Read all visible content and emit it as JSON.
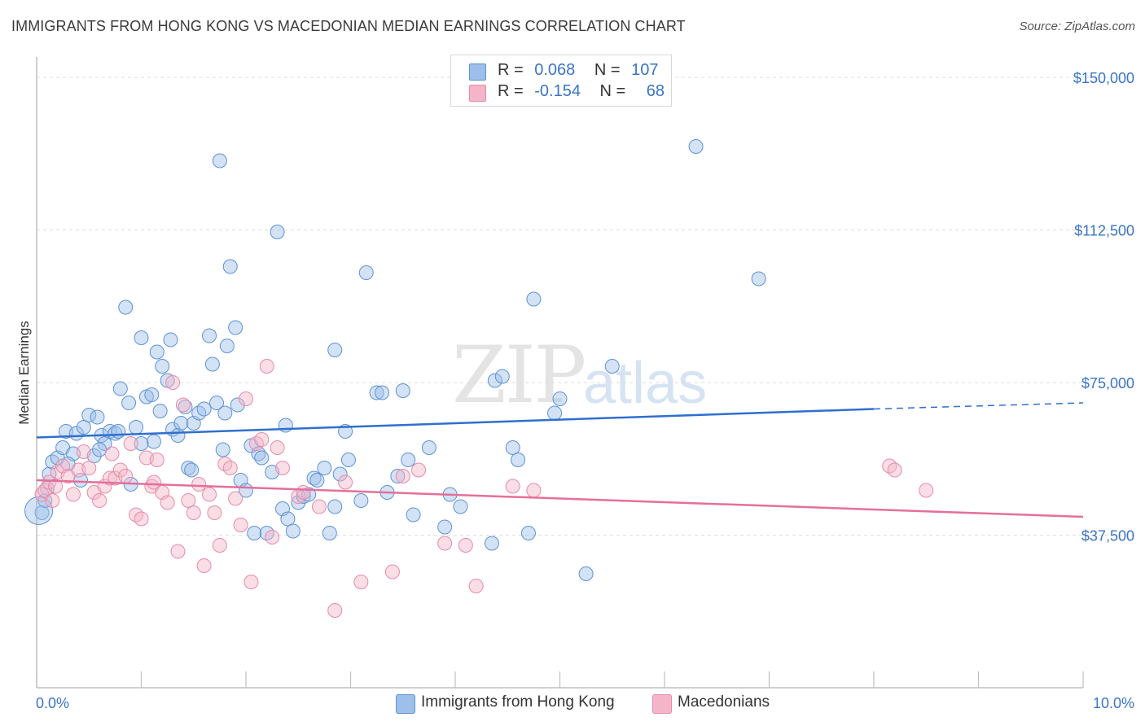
{
  "title": "IMMIGRANTS FROM HONG KONG VS MACEDONIAN MEDIAN EARNINGS CORRELATION CHART",
  "source": "Source: ZipAtlas.com",
  "watermark": {
    "zip": "ZIP",
    "atlas": "atlas"
  },
  "legend": {
    "rows": [
      {
        "r_label": "R =",
        "r_value": "0.068",
        "n_label": "N =",
        "n_value": "107",
        "color": "#9dbfe9"
      },
      {
        "r_label": "R =",
        "r_value": "-0.154",
        "n_label": "N =",
        "n_value": "68",
        "color": "#f5b5c8"
      }
    ]
  },
  "bottom_legend": {
    "series1": "Immigrants from Hong Kong",
    "series2": "Macedonians"
  },
  "chart_data": {
    "type": "scatter",
    "title": "IMMIGRANTS FROM HONG KONG VS MACEDONIAN MEDIAN EARNINGS CORRELATION CHART",
    "xlabel": "",
    "ylabel": "Median Earnings",
    "xlim": [
      0,
      10
    ],
    "ylim": [
      0,
      155000
    ],
    "x_tick_labels": [
      "0.0%",
      "10.0%"
    ],
    "y_ticks": [
      37500,
      75000,
      112500,
      150000
    ],
    "y_tick_labels": [
      "$37,500",
      "$75,000",
      "$112,500",
      "$150,000"
    ],
    "grid": true,
    "series": [
      {
        "name": "Immigrants from Hong Kong",
        "color": "#9dbfe9",
        "stroke": "#5d93d6",
        "trend": {
          "x": [
            0,
            8
          ],
          "y": [
            61500,
            68500
          ],
          "dashed_to": [
            10,
            70000
          ],
          "color": "#2f6fcf"
        },
        "points": [
          [
            0.05,
            43000
          ],
          [
            0.08,
            46000
          ],
          [
            0.1,
            49000
          ],
          [
            0.12,
            52500
          ],
          [
            0.15,
            55500
          ],
          [
            0.2,
            56500
          ],
          [
            0.25,
            59000
          ],
          [
            0.28,
            63000
          ],
          [
            0.35,
            57500
          ],
          [
            0.38,
            62500
          ],
          [
            0.42,
            51000
          ],
          [
            0.45,
            64000
          ],
          [
            0.5,
            67000
          ],
          [
            0.55,
            57000
          ],
          [
            0.58,
            66500
          ],
          [
            0.62,
            62000
          ],
          [
            0.65,
            60000
          ],
          [
            0.7,
            63000
          ],
          [
            0.75,
            62500
          ],
          [
            0.78,
            63000
          ],
          [
            0.8,
            73500
          ],
          [
            0.85,
            93500
          ],
          [
            0.88,
            70000
          ],
          [
            0.9,
            50000
          ],
          [
            0.95,
            64000
          ],
          [
            1.0,
            86000
          ],
          [
            1.05,
            71500
          ],
          [
            1.1,
            72000
          ],
          [
            1.12,
            60500
          ],
          [
            1.15,
            82500
          ],
          [
            1.18,
            68000
          ],
          [
            1.2,
            79000
          ],
          [
            1.25,
            75500
          ],
          [
            1.28,
            85500
          ],
          [
            1.3,
            63500
          ],
          [
            1.35,
            62000
          ],
          [
            1.38,
            65000
          ],
          [
            1.42,
            69000
          ],
          [
            1.45,
            54000
          ],
          [
            1.48,
            53500
          ],
          [
            1.5,
            65000
          ],
          [
            1.55,
            67500
          ],
          [
            1.6,
            68500
          ],
          [
            1.65,
            86500
          ],
          [
            1.68,
            79500
          ],
          [
            1.72,
            70000
          ],
          [
            1.75,
            129500
          ],
          [
            1.78,
            58500
          ],
          [
            1.8,
            67500
          ],
          [
            1.82,
            84000
          ],
          [
            1.85,
            103500
          ],
          [
            1.9,
            88500
          ],
          [
            1.92,
            69500
          ],
          [
            1.95,
            51000
          ],
          [
            2.0,
            48500
          ],
          [
            2.05,
            59500
          ],
          [
            2.08,
            38000
          ],
          [
            2.12,
            57500
          ],
          [
            2.15,
            56500
          ],
          [
            2.2,
            38000
          ],
          [
            2.25,
            53000
          ],
          [
            2.3,
            112000
          ],
          [
            2.35,
            44000
          ],
          [
            2.38,
            64500
          ],
          [
            2.4,
            41500
          ],
          [
            2.45,
            38500
          ],
          [
            2.5,
            45500
          ],
          [
            2.55,
            47000
          ],
          [
            2.6,
            47500
          ],
          [
            2.65,
            51500
          ],
          [
            2.68,
            51000
          ],
          [
            2.75,
            54000
          ],
          [
            2.8,
            38000
          ],
          [
            2.85,
            44500
          ],
          [
            2.9,
            52500
          ],
          [
            2.95,
            63000
          ],
          [
            2.98,
            56000
          ],
          [
            3.1,
            46000
          ],
          [
            3.15,
            102000
          ],
          [
            3.25,
            72500
          ],
          [
            3.3,
            72500
          ],
          [
            3.35,
            48000
          ],
          [
            3.45,
            52000
          ],
          [
            3.5,
            73000
          ],
          [
            3.55,
            56000
          ],
          [
            3.6,
            42500
          ],
          [
            3.75,
            59000
          ],
          [
            3.9,
            39500
          ],
          [
            3.95,
            47500
          ],
          [
            4.05,
            44500
          ],
          [
            4.35,
            35500
          ],
          [
            4.38,
            75500
          ],
          [
            4.45,
            76500
          ],
          [
            4.55,
            59000
          ],
          [
            4.6,
            56000
          ],
          [
            4.7,
            38000
          ],
          [
            4.75,
            95500
          ],
          [
            4.95,
            67500
          ],
          [
            5.0,
            71000
          ],
          [
            5.25,
            28000
          ],
          [
            5.5,
            79000
          ],
          [
            6.3,
            133000
          ],
          [
            6.9,
            100500
          ],
          [
            2.85,
            83000
          ],
          [
            1.0,
            60000
          ],
          [
            0.3,
            55000
          ],
          [
            0.6,
            58500
          ]
        ]
      },
      {
        "name": "Macedonians",
        "color": "#f5b5c8",
        "stroke": "#e88aa8",
        "trend": {
          "x": [
            0,
            10
          ],
          "y": [
            51000,
            42000
          ],
          "color": "#e56f9a"
        },
        "points": [
          [
            0.05,
            47500
          ],
          [
            0.08,
            48500
          ],
          [
            0.12,
            50500
          ],
          [
            0.15,
            46000
          ],
          [
            0.18,
            49500
          ],
          [
            0.2,
            53000
          ],
          [
            0.25,
            54500
          ],
          [
            0.3,
            52000
          ],
          [
            0.35,
            47500
          ],
          [
            0.4,
            53500
          ],
          [
            0.45,
            58000
          ],
          [
            0.5,
            54000
          ],
          [
            0.55,
            48000
          ],
          [
            0.6,
            46000
          ],
          [
            0.65,
            49500
          ],
          [
            0.7,
            51500
          ],
          [
            0.72,
            57500
          ],
          [
            0.75,
            51500
          ],
          [
            0.8,
            53500
          ],
          [
            0.85,
            52000
          ],
          [
            0.9,
            60000
          ],
          [
            0.95,
            42500
          ],
          [
            1.0,
            41500
          ],
          [
            1.05,
            56500
          ],
          [
            1.1,
            49500
          ],
          [
            1.12,
            50500
          ],
          [
            1.15,
            56000
          ],
          [
            1.2,
            48000
          ],
          [
            1.25,
            45500
          ],
          [
            1.3,
            75000
          ],
          [
            1.35,
            33500
          ],
          [
            1.4,
            69500
          ],
          [
            1.45,
            46000
          ],
          [
            1.5,
            43000
          ],
          [
            1.55,
            50000
          ],
          [
            1.6,
            30000
          ],
          [
            1.65,
            47500
          ],
          [
            1.7,
            43000
          ],
          [
            1.75,
            35000
          ],
          [
            1.8,
            55000
          ],
          [
            1.85,
            54000
          ],
          [
            1.9,
            46500
          ],
          [
            1.95,
            40000
          ],
          [
            2.0,
            71000
          ],
          [
            2.05,
            26000
          ],
          [
            2.1,
            60000
          ],
          [
            2.15,
            61000
          ],
          [
            2.2,
            79000
          ],
          [
            2.25,
            37000
          ],
          [
            2.3,
            59000
          ],
          [
            2.35,
            54000
          ],
          [
            2.5,
            47000
          ],
          [
            2.55,
            48000
          ],
          [
            2.7,
            44500
          ],
          [
            2.85,
            19000
          ],
          [
            2.95,
            50500
          ],
          [
            3.1,
            26000
          ],
          [
            3.4,
            28500
          ],
          [
            3.5,
            52000
          ],
          [
            3.65,
            53500
          ],
          [
            3.9,
            35500
          ],
          [
            4.1,
            35000
          ],
          [
            4.2,
            25000
          ],
          [
            4.55,
            49500
          ],
          [
            4.75,
            48500
          ],
          [
            8.15,
            54500
          ],
          [
            8.2,
            53500
          ],
          [
            8.5,
            48500
          ]
        ]
      }
    ]
  }
}
